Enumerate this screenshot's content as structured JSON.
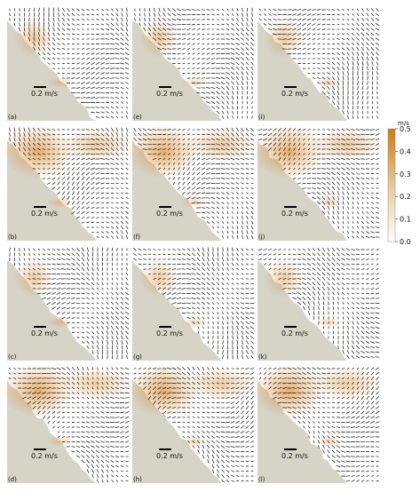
{
  "panels": [
    {
      "label": "(a)",
      "scale": "0.2 m/s"
    },
    {
      "label": "(b)",
      "scale": "0.2 m/s"
    },
    {
      "label": "(c)",
      "scale": "0.2 m/s"
    },
    {
      "label": "(d)",
      "scale": "0.2 m/s"
    },
    {
      "label": "(e)",
      "scale": "0.2 m/s"
    },
    {
      "label": "(f)",
      "scale": "0.2 m/s"
    },
    {
      "label": "(g)",
      "scale": "0.2 m/s"
    },
    {
      "label": "(h)",
      "scale": "0.2 m/s"
    },
    {
      "label": "(i)",
      "scale": "0.2 m/s"
    },
    {
      "label": "(j)",
      "scale": "0.2 m/s"
    },
    {
      "label": "(k)",
      "scale": "0.2 m/s"
    },
    {
      "label": "(l)",
      "scale": "0.2 m/s"
    }
  ],
  "colorbar": {
    "unit": "m/s",
    "range": [
      0,
      0.5
    ],
    "ticks": [
      {
        "value": 0,
        "label": "0.0"
      },
      0.1,
      0.2,
      0.3,
      0.4,
      0.5
    ]
  }
}
